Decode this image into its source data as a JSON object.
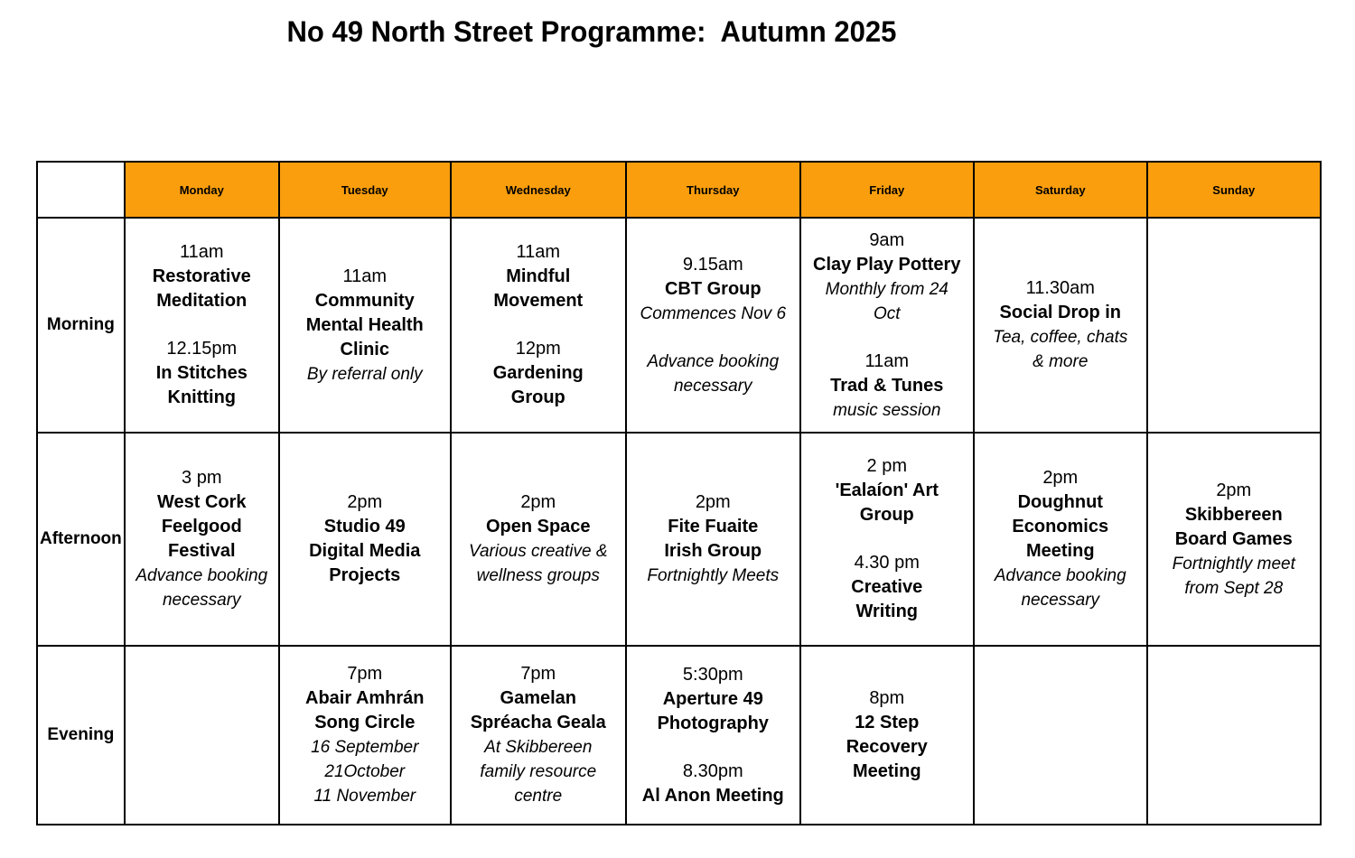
{
  "title": "No 49 North Street Programme:  Autumn 2025",
  "colors": {
    "header_bg": "#FA9E0D",
    "border": "#000000",
    "text": "#000000"
  },
  "days": [
    "Monday",
    "Tuesday",
    "Wednesday",
    "Thursday",
    "Friday",
    "Saturday",
    "Sunday"
  ],
  "row_labels": [
    "Morning",
    "Afternoon",
    "Evening"
  ],
  "cells": {
    "morning": {
      "monday": [
        {
          "t": "11am",
          "s": "time"
        },
        {
          "t": "Restorative\nMeditation",
          "s": "name"
        },
        {
          "s": "gap"
        },
        {
          "t": "12.15pm",
          "s": "time"
        },
        {
          "t": "In Stitches\nKnitting",
          "s": "name"
        }
      ],
      "tuesday": [
        {
          "t": "11am",
          "s": "time"
        },
        {
          "t": "Community\nMental Health\nClinic",
          "s": "name"
        },
        {
          "t": "By referral only",
          "s": "note"
        }
      ],
      "wednesday": [
        {
          "t": "11am",
          "s": "time"
        },
        {
          "t": "Mindful\nMovement",
          "s": "name"
        },
        {
          "s": "gap"
        },
        {
          "t": "12pm",
          "s": "time"
        },
        {
          "t": "Gardening\nGroup",
          "s": "name"
        }
      ],
      "thursday": [
        {
          "t": "9.15am",
          "s": "time"
        },
        {
          "t": "CBT Group",
          "s": "name"
        },
        {
          "t": "Commences Nov 6",
          "s": "note"
        },
        {
          "s": "gap"
        },
        {
          "t": "Advance booking\nnecessary",
          "s": "note"
        }
      ],
      "friday": [
        {
          "t": "9am",
          "s": "time"
        },
        {
          "t": "Clay Play Pottery",
          "s": "name"
        },
        {
          "t": "Monthly from 24\nOct",
          "s": "note"
        },
        {
          "s": "gap"
        },
        {
          "t": "11am",
          "s": "time"
        },
        {
          "t": "Trad & Tunes",
          "s": "name"
        },
        {
          "t": "music session",
          "s": "note"
        }
      ],
      "saturday": [
        {
          "t": "11.30am",
          "s": "time"
        },
        {
          "t": "Social Drop in",
          "s": "name"
        },
        {
          "t": "Tea, coffee, chats\n& more",
          "s": "note"
        }
      ],
      "sunday": []
    },
    "afternoon": {
      "monday": [
        {
          "t": "3 pm",
          "s": "time"
        },
        {
          "t": "West Cork\nFeelgood\nFestival",
          "s": "name"
        },
        {
          "t": "Advance booking\nnecessary",
          "s": "note"
        }
      ],
      "tuesday": [
        {
          "t": "2pm",
          "s": "time"
        },
        {
          "t": "Studio 49\nDigital Media\nProjects",
          "s": "name"
        }
      ],
      "wednesday": [
        {
          "t": "2pm",
          "s": "time"
        },
        {
          "t": "Open Space",
          "s": "name"
        },
        {
          "t": "Various creative &\nwellness groups",
          "s": "note"
        }
      ],
      "thursday": [
        {
          "t": "2pm",
          "s": "time"
        },
        {
          "t": "Fite Fuaite\nIrish Group",
          "s": "name"
        },
        {
          "t": "Fortnightly Meets",
          "s": "note"
        }
      ],
      "friday": [
        {
          "t": "2 pm",
          "s": "time"
        },
        {
          "t": "'Ealaíon' Art\nGroup",
          "s": "name"
        },
        {
          "s": "gap"
        },
        {
          "t": "4.30 pm",
          "s": "time"
        },
        {
          "t": "Creative\nWriting",
          "s": "name"
        }
      ],
      "saturday": [
        {
          "t": "2pm",
          "s": "time"
        },
        {
          "t": "Doughnut\nEconomics\nMeeting",
          "s": "name"
        },
        {
          "t": "Advance booking\nnecessary",
          "s": "note"
        }
      ],
      "sunday": [
        {
          "t": "2pm",
          "s": "time"
        },
        {
          "t": "Skibbereen\nBoard Games",
          "s": "name"
        },
        {
          "t": "Fortnightly meet\nfrom Sept 28",
          "s": "note"
        }
      ]
    },
    "evening": {
      "monday": [],
      "tuesday": [
        {
          "t": "7pm",
          "s": "time"
        },
        {
          "t": "Abair Amhrán\nSong Circle",
          "s": "name"
        },
        {
          "t": "16 September\n21October\n11 November",
          "s": "note"
        }
      ],
      "wednesday": [
        {
          "t": "7pm",
          "s": "time"
        },
        {
          "t": "Gamelan\nSpréacha Geala",
          "s": "name"
        },
        {
          "t": "At Skibbereen\nfamily resource\ncentre",
          "s": "note"
        }
      ],
      "thursday": [
        {
          "t": "5:30pm",
          "s": "time"
        },
        {
          "t": "Aperture 49\nPhotography",
          "s": "name"
        },
        {
          "s": "gap"
        },
        {
          "t": "8.30pm",
          "s": "time"
        },
        {
          "t": "Al Anon Meeting",
          "s": "name"
        }
      ],
      "friday": [
        {
          "t": "8pm",
          "s": "time"
        },
        {
          "t": "12 Step\nRecovery\nMeeting",
          "s": "name"
        }
      ],
      "saturday": [],
      "sunday": []
    }
  }
}
